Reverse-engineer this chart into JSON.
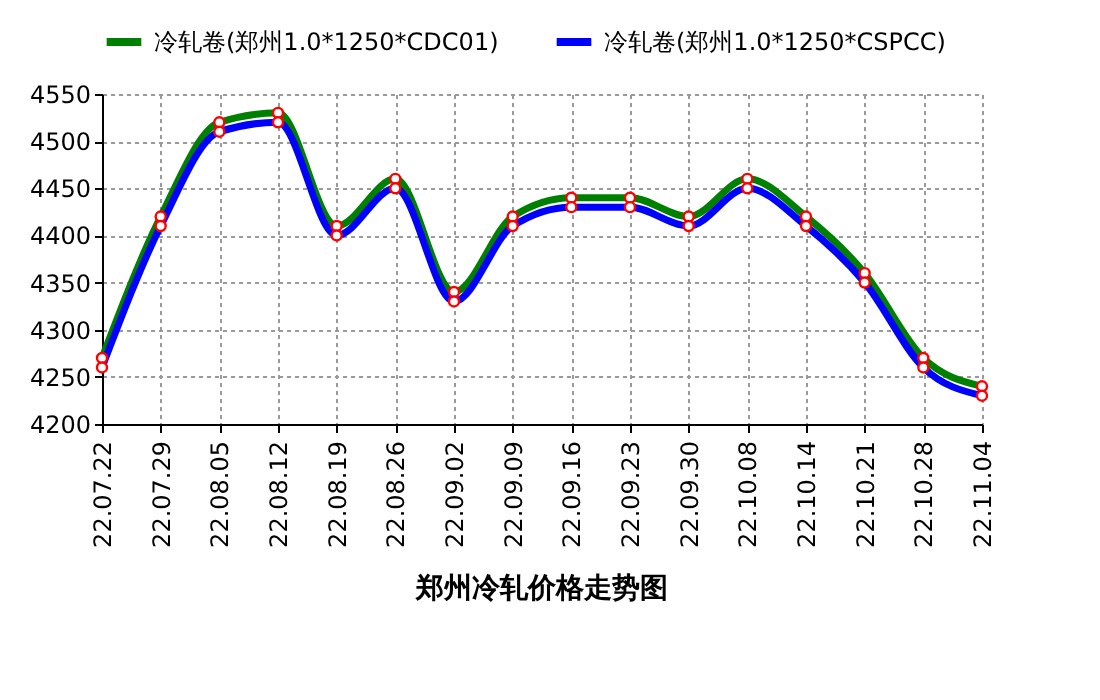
{
  "chart_data": {
    "type": "line",
    "title": "郑州冷轧价格走势图",
    "categories": [
      "22.07.22",
      "22.07.29",
      "22.08.05",
      "22.08.12",
      "22.08.19",
      "22.08.26",
      "22.09.02",
      "22.09.09",
      "22.09.16",
      "22.09.23",
      "22.09.30",
      "22.10.08",
      "22.10.14",
      "22.10.21",
      "22.10.28",
      "22.11.04"
    ],
    "series": [
      {
        "name": "冷轧卷(郑州1.0*1250*CDC01)",
        "color": "#008000",
        "values": [
          4270,
          4420,
          4520,
          4530,
          4410,
          4460,
          4340,
          4420,
          4440,
          4440,
          4420,
          4460,
          4420,
          4360,
          4270,
          4240
        ]
      },
      {
        "name": "冷轧卷(郑州1.0*1250*CSPCC)",
        "color": "#0000ff",
        "values": [
          4260,
          4410,
          4510,
          4520,
          4400,
          4450,
          4330,
          4410,
          4430,
          4430,
          4410,
          4450,
          4410,
          4350,
          4260,
          4230
        ]
      }
    ],
    "ylim": [
      4200,
      4550
    ],
    "yticks": [
      4200,
      4250,
      4300,
      4350,
      4400,
      4450,
      4500,
      4550
    ],
    "grid": true,
    "legend": "top",
    "marker": "circle",
    "line_style": "solid"
  }
}
